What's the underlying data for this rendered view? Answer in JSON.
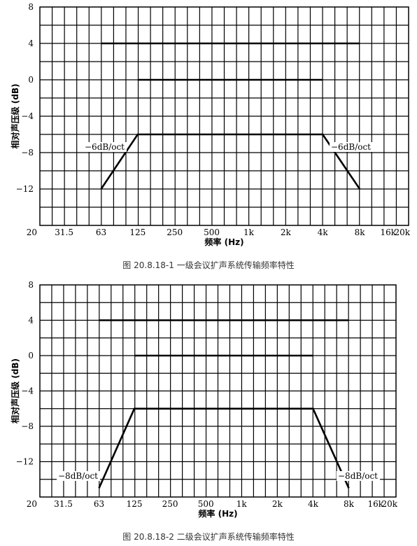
{
  "chart_data": [
    {
      "type": "line",
      "caption": "图 20.8.18-1 一级会议扩声系统传输频率特性",
      "xlabel": "频率 (Hz)",
      "ylabel": "相对声压级 (dB)",
      "x_ticks": [
        "20",
        "31.5",
        "63",
        "125",
        "250",
        "500",
        "1k",
        "2k",
        "4k",
        "8k",
        "16k",
        "20k"
      ],
      "y_ticks": [
        "8",
        "4",
        "0",
        "−4",
        "−8",
        "−12"
      ],
      "ylim": [
        -16,
        8
      ],
      "x_scale": "log",
      "grid": true,
      "series": [
        {
          "points": [
            [
              63,
              4
            ],
            [
              8000,
              4
            ]
          ]
        },
        {
          "points": [
            [
              125,
              0
            ],
            [
              4000,
              0
            ]
          ]
        },
        {
          "points": [
            [
              63,
              -12
            ],
            [
              125,
              -6
            ],
            [
              4000,
              -6
            ],
            [
              8000,
              -12
            ]
          ]
        }
      ],
      "annotations": [
        {
          "text": "−6dB/oct",
          "side": "left"
        },
        {
          "text": "−6dB/oct",
          "side": "right"
        }
      ]
    },
    {
      "type": "line",
      "caption": "图 20.8.18-2 二级会议扩声系统传输频率特性",
      "xlabel": "频率 (Hz)",
      "ylabel": "相对声压级 (dB)",
      "x_ticks": [
        "20",
        "31.5",
        "63",
        "125",
        "250",
        "500",
        "1k",
        "2k",
        "4k",
        "8k",
        "16k",
        "20k"
      ],
      "y_ticks": [
        "8",
        "4",
        "0",
        "−4",
        "−8",
        "−12"
      ],
      "ylim": [
        -16,
        8
      ],
      "x_scale": "log",
      "grid": true,
      "series": [
        {
          "points": [
            [
              63,
              4
            ],
            [
              8000,
              4
            ]
          ]
        },
        {
          "points": [
            [
              125,
              0
            ],
            [
              4000,
              0
            ]
          ]
        },
        {
          "points": [
            [
              63,
              -15
            ],
            [
              125,
              -6
            ],
            [
              4000,
              -6
            ],
            [
              8000,
              -15
            ]
          ]
        }
      ],
      "annotations": [
        {
          "text": "−8dB/oct",
          "side": "left"
        },
        {
          "text": "−8dB/oct",
          "side": "right"
        }
      ]
    }
  ]
}
